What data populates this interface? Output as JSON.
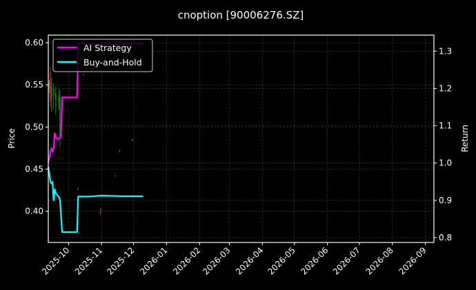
{
  "chart_data": {
    "type": "line",
    "title": "cnoption [90006276.SZ]",
    "xlabel": "",
    "ylabel": "Price",
    "ylabel_right": "Return",
    "xlim": [
      "2025-09-12",
      "2026-09-09"
    ],
    "ylim": [
      0.363,
      0.609
    ],
    "ylim_right": [
      0.787,
      1.343
    ],
    "grid": true,
    "legend_placement": "top-left",
    "x_ticks": [
      "2025-10",
      "2025-11",
      "2025-12",
      "2026-01",
      "2026-02",
      "2026-03",
      "2026-04",
      "2026-05",
      "2026-06",
      "2026-07",
      "2026-08",
      "2026-09"
    ],
    "x_tick_dates": [
      "2025-10-01",
      "2025-11-01",
      "2025-12-01",
      "2026-01-01",
      "2026-02-01",
      "2026-03-01",
      "2026-04-01",
      "2026-05-01",
      "2026-06-01",
      "2026-07-01",
      "2026-08-01",
      "2026-09-01"
    ],
    "y_ticks": [
      "0.40",
      "0.45",
      "0.50",
      "0.55",
      "0.60"
    ],
    "y_ticks_right": [
      "0.8",
      "0.9",
      "1.0",
      "1.1",
      "1.2",
      "1.3"
    ],
    "series": [
      {
        "name": "AI Strategy",
        "axis": "right",
        "color": "#ff00ff",
        "x": [
          "2025-09-12",
          "2025-09-14",
          "2025-09-15",
          "2025-09-16",
          "2025-09-17",
          "2025-09-18",
          "2025-09-19",
          "2025-09-20",
          "2025-09-22",
          "2025-09-24",
          "2025-09-25",
          "2025-10-09",
          "2025-10-10",
          "2025-12-10"
        ],
        "values": [
          1.0,
          1.03,
          1.04,
          1.03,
          1.04,
          1.08,
          1.07,
          1.065,
          1.065,
          1.07,
          1.176,
          1.176,
          1.32,
          1.32
        ]
      },
      {
        "name": "Buy-and-Hold",
        "axis": "right",
        "color": "#00ffff",
        "x": [
          "2025-09-12",
          "2025-09-14",
          "2025-09-15",
          "2025-09-16",
          "2025-09-17",
          "2025-09-18",
          "2025-09-19",
          "2025-09-20",
          "2025-09-22",
          "2025-09-23",
          "2025-09-25",
          "2025-10-09",
          "2025-10-10",
          "2025-10-20",
          "2025-11-01",
          "2025-11-20",
          "2025-12-10"
        ],
        "values": [
          0.99,
          0.95,
          0.945,
          0.95,
          0.9,
          0.93,
          0.92,
          0.915,
          0.91,
          0.9,
          0.815,
          0.815,
          0.91,
          0.91,
          0.913,
          0.911,
          0.911
        ]
      }
    ],
    "candles": [
      {
        "date": "2025-09-13",
        "open": 0.545,
        "high": 0.556,
        "low": 0.54,
        "close": 0.553
      },
      {
        "date": "2025-09-14",
        "open": 0.565,
        "high": 0.571,
        "low": 0.524,
        "close": 0.53
      },
      {
        "date": "2025-09-15",
        "open": 0.535,
        "high": 0.558,
        "low": 0.518,
        "close": 0.548
      },
      {
        "date": "2025-09-17",
        "open": 0.538,
        "high": 0.552,
        "low": 0.522,
        "close": 0.546
      },
      {
        "date": "2025-09-19",
        "open": 0.532,
        "high": 0.548,
        "low": 0.515,
        "close": 0.54
      },
      {
        "date": "2025-09-22",
        "open": 0.53,
        "high": 0.545,
        "low": 0.52,
        "close": 0.538
      },
      {
        "date": "2025-09-23",
        "open": 0.49,
        "high": 0.543,
        "low": 0.476,
        "close": 0.535
      },
      {
        "date": "2025-10-10",
        "open": 0.426,
        "high": 0.428,
        "low": 0.425,
        "close": 0.427
      },
      {
        "date": "2025-10-15",
        "open": 0.563,
        "high": 0.563,
        "low": 0.561,
        "close": 0.561
      },
      {
        "date": "2025-10-31",
        "open": 0.403,
        "high": 0.404,
        "low": 0.396,
        "close": 0.397
      },
      {
        "date": "2025-11-14",
        "open": 0.443,
        "high": 0.443,
        "low": 0.441,
        "close": 0.441
      },
      {
        "date": "2025-11-18",
        "open": 0.47,
        "high": 0.473,
        "low": 0.47,
        "close": 0.472
      },
      {
        "date": "2025-11-30",
        "open": 0.485,
        "high": 0.486,
        "low": 0.483,
        "close": 0.483
      }
    ],
    "candle_colors": {
      "up": "#1a8a1a",
      "down": "#cc1a1a"
    }
  }
}
